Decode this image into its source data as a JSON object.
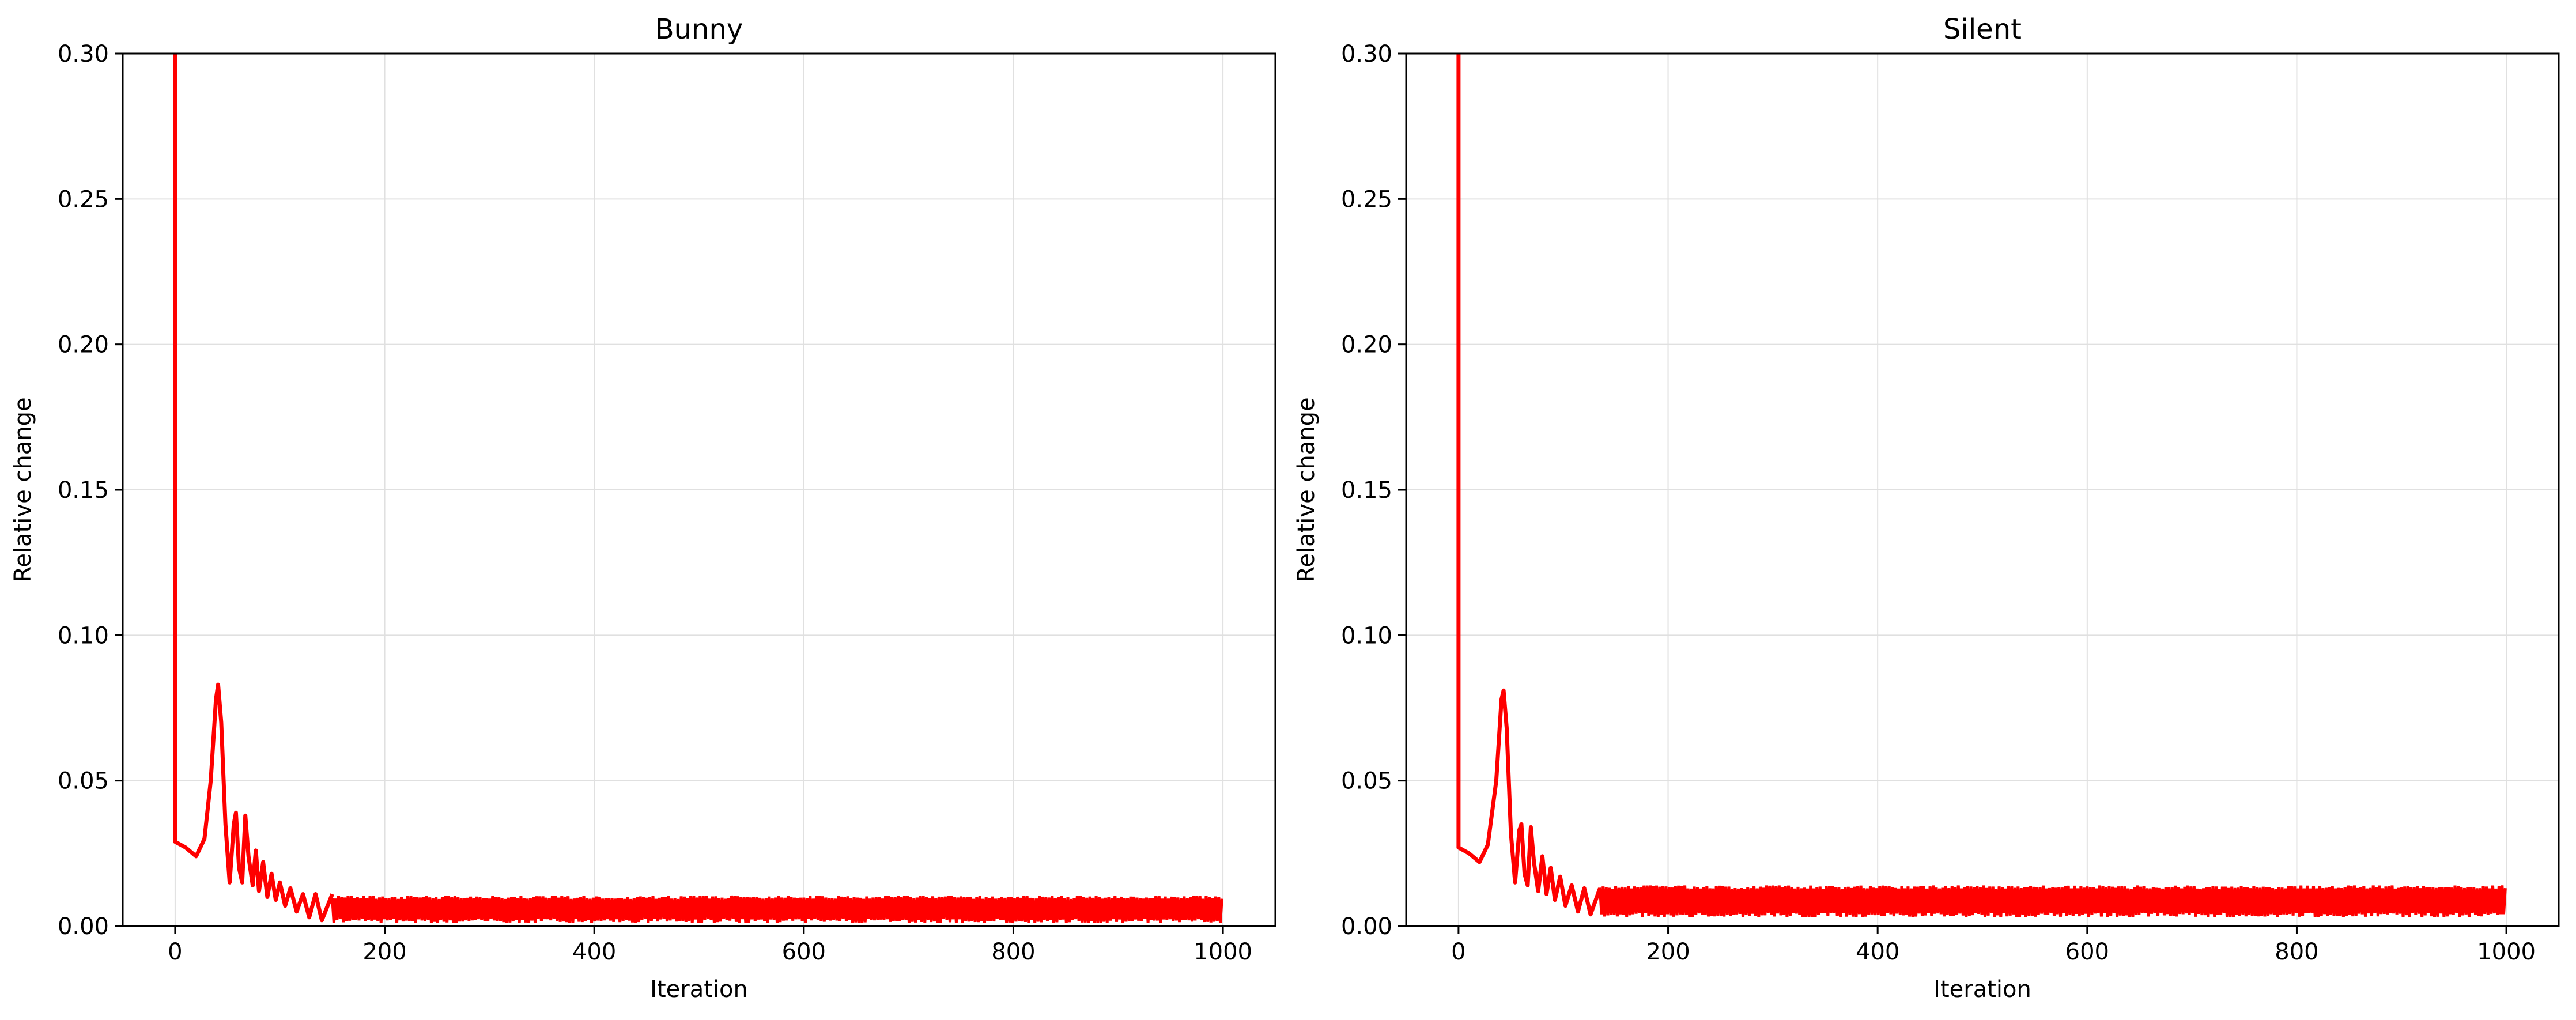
{
  "chart_data": [
    {
      "type": "line",
      "title": "Bunny",
      "xlabel": "Iteration",
      "ylabel": "Relative change",
      "xlim": [
        -50,
        1050
      ],
      "ylim": [
        0.0,
        0.3
      ],
      "x_ticks": [
        "0",
        "200",
        "400",
        "600",
        "800",
        "1000"
      ],
      "y_ticks": [
        "0.00",
        "0.05",
        "0.10",
        "0.15",
        "0.20",
        "0.25",
        "0.30"
      ],
      "grid": true,
      "series": [
        {
          "color": "#ff0000",
          "points": [
            [
              0,
              0.3
            ],
            [
              0,
              0.029
            ],
            [
              10,
              0.027
            ],
            [
              20,
              0.024
            ],
            [
              28,
              0.03
            ],
            [
              34,
              0.05
            ],
            [
              39,
              0.078
            ],
            [
              41,
              0.083
            ],
            [
              44,
              0.07
            ],
            [
              48,
              0.035
            ],
            [
              52,
              0.015
            ],
            [
              56,
              0.035
            ],
            [
              58,
              0.039
            ],
            [
              61,
              0.02
            ],
            [
              64,
              0.015
            ],
            [
              67,
              0.038
            ],
            [
              70,
              0.024
            ],
            [
              74,
              0.014
            ],
            [
              77,
              0.026
            ],
            [
              80,
              0.012
            ],
            [
              84,
              0.022
            ],
            [
              88,
              0.01
            ],
            [
              92,
              0.018
            ],
            [
              96,
              0.009
            ],
            [
              100,
              0.015
            ],
            [
              105,
              0.007
            ],
            [
              110,
              0.013
            ],
            [
              116,
              0.005
            ],
            [
              122,
              0.011
            ],
            [
              128,
              0.003
            ],
            [
              134,
              0.011
            ],
            [
              140,
              0.002
            ],
            [
              150,
              0.011
            ]
          ],
          "band": {
            "x_start": 150,
            "x_end": 1000,
            "low": 0.001,
            "high": 0.0105
          }
        }
      ]
    },
    {
      "type": "line",
      "title": "Silent",
      "xlabel": "Iteration",
      "ylabel": "Relative change",
      "xlim": [
        -50,
        1050
      ],
      "ylim": [
        0.0,
        0.3
      ],
      "x_ticks": [
        "0",
        "200",
        "400",
        "600",
        "800",
        "1000"
      ],
      "y_ticks": [
        "0.00",
        "0.05",
        "0.10",
        "0.15",
        "0.20",
        "0.25",
        "0.30"
      ],
      "grid": true,
      "series": [
        {
          "color": "#ff0000",
          "points": [
            [
              0,
              0.3
            ],
            [
              0,
              0.027
            ],
            [
              10,
              0.025
            ],
            [
              20,
              0.022
            ],
            [
              28,
              0.028
            ],
            [
              36,
              0.05
            ],
            [
              41,
              0.078
            ],
            [
              43,
              0.081
            ],
            [
              46,
              0.068
            ],
            [
              50,
              0.032
            ],
            [
              54,
              0.015
            ],
            [
              58,
              0.033
            ],
            [
              60,
              0.035
            ],
            [
              63,
              0.018
            ],
            [
              66,
              0.014
            ],
            [
              69,
              0.034
            ],
            [
              72,
              0.022
            ],
            [
              76,
              0.012
            ],
            [
              80,
              0.024
            ],
            [
              84,
              0.011
            ],
            [
              88,
              0.02
            ],
            [
              92,
              0.009
            ],
            [
              97,
              0.017
            ],
            [
              102,
              0.007
            ],
            [
              108,
              0.014
            ],
            [
              114,
              0.005
            ],
            [
              120,
              0.013
            ],
            [
              126,
              0.004
            ],
            [
              135,
              0.013
            ]
          ],
          "band": {
            "x_start": 135,
            "x_end": 1000,
            "low": 0.003,
            "high": 0.014
          }
        }
      ]
    }
  ]
}
